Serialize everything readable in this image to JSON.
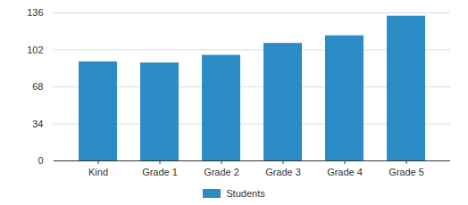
{
  "chart_data": {
    "type": "bar",
    "categories": [
      "Kind",
      "Grade 1",
      "Grade 2",
      "Grade 3",
      "Grade 4",
      "Grade 5"
    ],
    "series": [
      {
        "name": "Students",
        "color": "#2a8bc5",
        "values": [
          91,
          90,
          97,
          108,
          115,
          133
        ]
      }
    ],
    "ylim": [
      0,
      136
    ],
    "yticks": [
      0,
      34,
      68,
      102,
      136
    ],
    "grid": true,
    "legend": "bottom"
  }
}
